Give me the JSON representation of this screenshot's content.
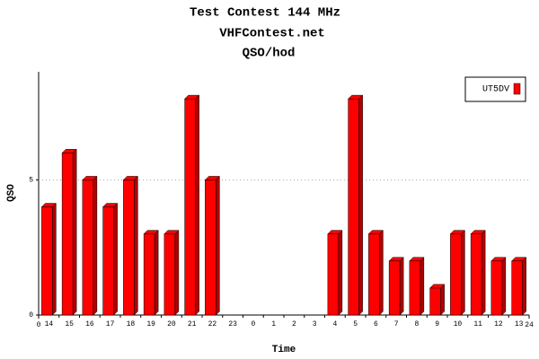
{
  "chart_data": {
    "type": "bar3d",
    "title": "Test Contest 144 MHz",
    "subtitle": "VHFContest.net",
    "subtitle2": "QSO/hod",
    "x_label": "Time",
    "y_label": "QSO",
    "categories": [
      "14",
      "15",
      "16",
      "17",
      "18",
      "19",
      "20",
      "21",
      "22",
      "23",
      "0",
      "1",
      "2",
      "3",
      "4",
      "5",
      "6",
      "7",
      "8",
      "9",
      "10",
      "11",
      "12",
      "13"
    ],
    "xlim": [
      0,
      24
    ],
    "series": [
      {
        "name": "UT5DV",
        "color": "#ff0000",
        "values": [
          4,
          6,
          5,
          4,
          5,
          3,
          3,
          8,
          5,
          0,
          0,
          0,
          0,
          0,
          3,
          8,
          3,
          2,
          2,
          1,
          3,
          3,
          2,
          2
        ]
      }
    ],
    "ylim": [
      0,
      9
    ],
    "yticks": [
      0,
      5
    ],
    "grid": true,
    "legend": "top-right"
  }
}
